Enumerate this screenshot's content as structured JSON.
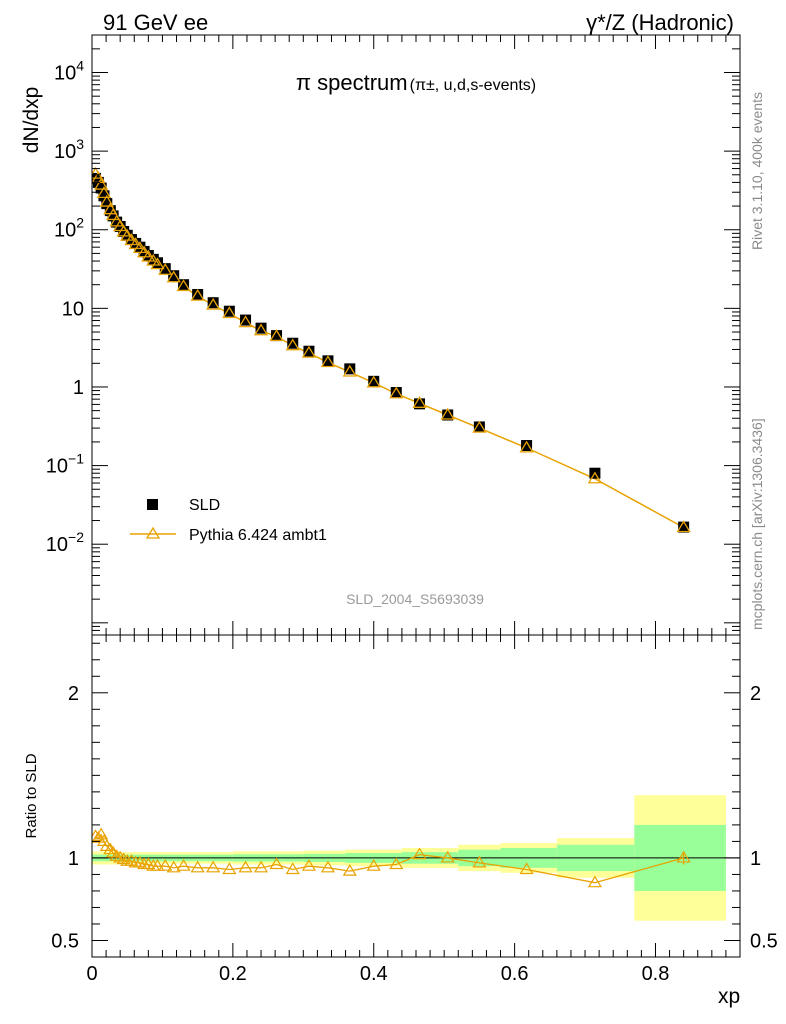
{
  "header": {
    "left": "91 GeV ee",
    "right": "γ*/Z (Hadronic)"
  },
  "side_labels": {
    "rivet": "Rivet 3.1.10,  400k events",
    "mcplots": "mcplots.cern.ch [arXiv:1306.3436]"
  },
  "chart_data": [
    {
      "type": "scatter",
      "title": "π spectrum",
      "title_sub": "(π±, u,d,s-events)",
      "ylabel": "dN/dxp",
      "xlabel": "xp",
      "watermark": "SLD_2004_S5693039",
      "yscale": "log",
      "xlim": [
        0,
        0.92
      ],
      "ylim": [
        0.0007,
        30000
      ],
      "ytick_labels": [
        {
          "value": 0.01,
          "label": "10",
          "exp": "−2"
        },
        {
          "value": 0.1,
          "label": "10",
          "exp": "−1"
        },
        {
          "value": 1,
          "label": "1",
          "exp": ""
        },
        {
          "value": 10,
          "label": "10",
          "exp": ""
        },
        {
          "value": 100,
          "label": "10",
          "exp": "2"
        },
        {
          "value": 1000,
          "label": "10",
          "exp": "3"
        },
        {
          "value": 10000,
          "label": "10",
          "exp": "4"
        }
      ],
      "legend": {
        "placement": "lower-left",
        "data_label": "SLD",
        "mc_label": "Pythia 6.424 ambt1"
      },
      "x": [
        0.005,
        0.009,
        0.013,
        0.017,
        0.021,
        0.026,
        0.03,
        0.035,
        0.04,
        0.045,
        0.05,
        0.056,
        0.062,
        0.068,
        0.074,
        0.08,
        0.087,
        0.093,
        0.104,
        0.116,
        0.13,
        0.15,
        0.172,
        0.195,
        0.218,
        0.24,
        0.262,
        0.285,
        0.308,
        0.335,
        0.366,
        0.4,
        0.432,
        0.465,
        0.505,
        0.55,
        0.617,
        0.714,
        0.84
      ],
      "series": [
        {
          "name": "SLD",
          "color": "#000000",
          "values": [
            450,
            400,
            340,
            270,
            215,
            175,
            150,
            125,
            110,
            95,
            85,
            75,
            67,
            60,
            53,
            47,
            42,
            38,
            32,
            26,
            20,
            15,
            11.8,
            9.2,
            7.1,
            5.6,
            4.5,
            3.6,
            2.85,
            2.15,
            1.7,
            1.18,
            0.85,
            0.61,
            0.44,
            0.31,
            0.18,
            0.08,
            0.0165
          ]
        },
        {
          "name": "Pythia 6.424 ambt1",
          "color": "#E8A200",
          "values": [
            510,
            450,
            370,
            290,
            225,
            180,
            152,
            126,
            110,
            94,
            83,
            73,
            65,
            58,
            51,
            45,
            40,
            36,
            30.5,
            24.5,
            19.0,
            14.3,
            11.0,
            8.6,
            6.6,
            5.2,
            4.4,
            3.35,
            2.7,
            2.05,
            1.55,
            1.13,
            0.82,
            0.62,
            0.44,
            0.3,
            0.168,
            0.068,
            0.0163
          ]
        }
      ]
    },
    {
      "type": "line",
      "ylabel": "Ratio to SLD",
      "xlabel": "xp",
      "xlim": [
        0,
        0.92
      ],
      "ylim": [
        0.4,
        2.35
      ],
      "x_ticks": [
        0,
        0.2,
        0.4,
        0.6,
        0.8
      ],
      "x_tick_labels": [
        "0",
        "0.2",
        "0.4",
        "0.6",
        "0.8"
      ],
      "y_ticks": [
        0.5,
        1,
        2
      ],
      "y_tick_labels": [
        "0.5",
        "1",
        "2"
      ],
      "band_colors": {
        "inner": "#99FF99",
        "outer": "#FFFF99"
      },
      "bands": {
        "edges": [
          0,
          0.04,
          0.1,
          0.2,
          0.3,
          0.36,
          0.44,
          0.52,
          0.58,
          0.66,
          0.77,
          0.9
        ],
        "outer": [
          0.04,
          0.035,
          0.035,
          0.04,
          0.045,
          0.05,
          0.06,
          0.08,
          0.09,
          0.12,
          0.38
        ],
        "inner": [
          0.02,
          0.02,
          0.02,
          0.022,
          0.025,
          0.03,
          0.035,
          0.05,
          0.06,
          0.08,
          0.2
        ]
      },
      "x": [
        0.005,
        0.009,
        0.013,
        0.017,
        0.021,
        0.026,
        0.03,
        0.035,
        0.04,
        0.045,
        0.05,
        0.056,
        0.062,
        0.068,
        0.074,
        0.08,
        0.087,
        0.093,
        0.104,
        0.116,
        0.13,
        0.15,
        0.172,
        0.195,
        0.218,
        0.24,
        0.262,
        0.285,
        0.308,
        0.335,
        0.366,
        0.4,
        0.432,
        0.465,
        0.505,
        0.55,
        0.617,
        0.714,
        0.84
      ],
      "series": [
        {
          "name": "Pythia 6.424 ambt1",
          "color": "#E8A200",
          "values": [
            1.13,
            1.12,
            1.14,
            1.1,
            1.07,
            1.05,
            1.03,
            1.01,
            1.0,
            0.99,
            0.98,
            0.98,
            0.97,
            0.97,
            0.96,
            0.96,
            0.95,
            0.95,
            0.95,
            0.94,
            0.95,
            0.94,
            0.94,
            0.93,
            0.94,
            0.94,
            0.96,
            0.93,
            0.95,
            0.94,
            0.92,
            0.95,
            0.96,
            1.02,
            1.0,
            0.97,
            0.93,
            0.85,
            1.0
          ]
        }
      ]
    }
  ]
}
